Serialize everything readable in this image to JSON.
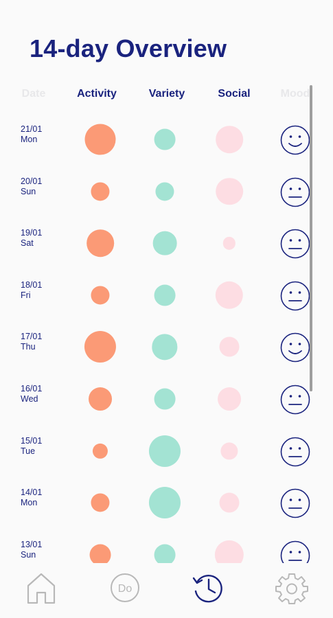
{
  "page": {
    "title": "14-day Overview"
  },
  "header": {
    "date_col": "Date",
    "activity": "Activity",
    "variety": "Variety",
    "social": "Social",
    "mood_col": "Mood"
  },
  "colors": {
    "activity": "#fb9a76",
    "variety": "#a3e3d3",
    "social": "#fddde3",
    "text": "#1a237e"
  },
  "rows": [
    {
      "date": "21/01",
      "day": "Mon",
      "activity": 0.92,
      "variety": 0.55,
      "social": 0.78,
      "mood": "happy"
    },
    {
      "date": "20/01",
      "day": "Sun",
      "activity": 0.45,
      "variety": 0.45,
      "social": 0.78,
      "mood": "neutral"
    },
    {
      "date": "19/01",
      "day": "Sat",
      "activity": 0.78,
      "variety": 0.65,
      "social": 0.22,
      "mood": "neutral"
    },
    {
      "date": "18/01",
      "day": "Fri",
      "activity": 0.45,
      "variety": 0.55,
      "social": 0.8,
      "mood": "neutral"
    },
    {
      "date": "17/01",
      "day": "Thu",
      "activity": 0.95,
      "variety": 0.72,
      "social": 0.5,
      "mood": "happy"
    },
    {
      "date": "16/01",
      "day": "Wed",
      "activity": 0.63,
      "variety": 0.55,
      "social": 0.63,
      "mood": "neutral"
    },
    {
      "date": "15/01",
      "day": "Tue",
      "activity": 0.32,
      "variety": 0.95,
      "social": 0.4,
      "mood": "neutral"
    },
    {
      "date": "14/01",
      "day": "Mon",
      "activity": 0.45,
      "variety": 0.95,
      "social": 0.5,
      "mood": "neutral"
    },
    {
      "date": "13/01",
      "day": "Sun",
      "activity": 0.55,
      "variety": 0.55,
      "social": 0.85,
      "mood": "neutral"
    }
  ],
  "nav": [
    {
      "id": "home",
      "icon": "home-icon",
      "active": false
    },
    {
      "id": "do",
      "icon": "do-icon",
      "label": "Do",
      "active": false
    },
    {
      "id": "history",
      "icon": "history-icon",
      "active": true
    },
    {
      "id": "settings",
      "icon": "gear-icon",
      "active": false
    }
  ]
}
